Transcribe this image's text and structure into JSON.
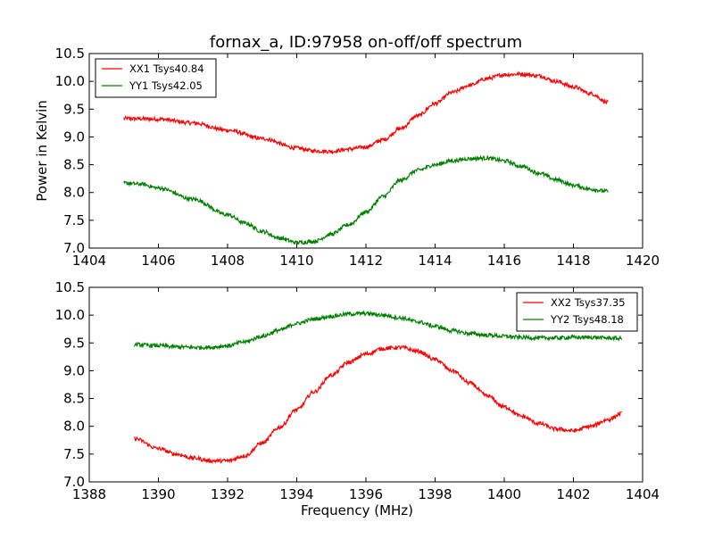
{
  "title": "fornax_a, ID:97958 on-off/off spectrum",
  "chart_data": [
    {
      "type": "line",
      "ylabel": "Power in Kelvin",
      "xlabel": "",
      "xlim": [
        1404,
        1420
      ],
      "ylim": [
        7.0,
        10.5
      ],
      "xticks": [
        "1404",
        "1406",
        "1408",
        "1410",
        "1412",
        "1414",
        "1416",
        "1418",
        "1420"
      ],
      "yticks": [
        "7.0",
        "7.5",
        "8.0",
        "8.5",
        "9.0",
        "9.5",
        "10.0",
        "10.5"
      ],
      "legend_position": "top-left",
      "grid": false,
      "series": [
        {
          "name": "XX1 Tsys40.84",
          "color": "#ff0000",
          "x": [
            1405.0,
            1406.0,
            1407.0,
            1408.0,
            1409.0,
            1410.0,
            1410.5,
            1411.0,
            1411.5,
            1412.0,
            1412.5,
            1413.0,
            1413.5,
            1414.0,
            1414.5,
            1415.0,
            1415.5,
            1416.0,
            1416.5,
            1417.0,
            1417.5,
            1418.0,
            1418.5,
            1419.0
          ],
          "y": [
            9.33,
            9.32,
            9.25,
            9.12,
            8.97,
            8.8,
            8.75,
            8.74,
            8.78,
            8.82,
            8.95,
            9.15,
            9.38,
            9.6,
            9.8,
            9.93,
            10.05,
            10.12,
            10.13,
            10.1,
            10.0,
            9.9,
            9.78,
            9.62
          ]
        },
        {
          "name": "YY1 Tsys42.05",
          "color": "#008000",
          "x": [
            1405.0,
            1405.5,
            1406.0,
            1407.0,
            1408.0,
            1408.5,
            1409.0,
            1409.5,
            1410.0,
            1410.5,
            1411.0,
            1411.5,
            1412.0,
            1412.5,
            1413.0,
            1413.5,
            1414.0,
            1414.5,
            1415.0,
            1415.5,
            1416.0,
            1416.5,
            1417.0,
            1417.5,
            1418.0,
            1418.5,
            1419.0
          ],
          "y": [
            8.17,
            8.15,
            8.08,
            7.88,
            7.6,
            7.45,
            7.3,
            7.18,
            7.1,
            7.12,
            7.25,
            7.42,
            7.65,
            7.93,
            8.22,
            8.4,
            8.5,
            8.57,
            8.61,
            8.62,
            8.57,
            8.47,
            8.35,
            8.23,
            8.13,
            8.06,
            8.02
          ]
        }
      ]
    },
    {
      "type": "line",
      "ylabel": "",
      "xlabel": "Frequency (MHz)",
      "xlim": [
        1388,
        1404
      ],
      "ylim": [
        7.0,
        10.5
      ],
      "xticks": [
        "1388",
        "1390",
        "1392",
        "1394",
        "1396",
        "1398",
        "1400",
        "1402",
        "1404"
      ],
      "yticks": [
        "7.0",
        "7.5",
        "8.0",
        "8.5",
        "9.0",
        "9.5",
        "10.0",
        "10.5"
      ],
      "legend_position": "top-right",
      "grid": false,
      "series": [
        {
          "name": "XX2 Tsys37.35",
          "color": "#ff0000",
          "x": [
            1389.3,
            1390.0,
            1390.5,
            1391.0,
            1391.5,
            1392.0,
            1392.5,
            1393.0,
            1393.5,
            1394.0,
            1394.5,
            1395.0,
            1395.5,
            1396.0,
            1396.5,
            1397.0,
            1397.5,
            1398.0,
            1398.5,
            1399.0,
            1399.5,
            1400.0,
            1400.5,
            1401.0,
            1401.5,
            1402.0,
            1402.5,
            1403.0,
            1403.4
          ],
          "y": [
            7.78,
            7.6,
            7.5,
            7.43,
            7.38,
            7.38,
            7.47,
            7.7,
            7.98,
            8.3,
            8.62,
            8.92,
            9.15,
            9.3,
            9.4,
            9.42,
            9.35,
            9.2,
            9.0,
            8.78,
            8.55,
            8.35,
            8.18,
            8.05,
            7.95,
            7.92,
            8.0,
            8.12,
            8.23
          ]
        },
        {
          "name": "YY2 Tsys48.18",
          "color": "#008000",
          "x": [
            1389.3,
            1390.0,
            1390.5,
            1391.0,
            1391.5,
            1392.0,
            1392.5,
            1393.0,
            1393.5,
            1394.0,
            1394.5,
            1395.0,
            1395.5,
            1396.0,
            1396.5,
            1397.0,
            1397.5,
            1398.0,
            1398.5,
            1399.0,
            1399.5,
            1400.0,
            1400.5,
            1401.0,
            1401.5,
            1402.0,
            1402.5,
            1403.0,
            1403.4
          ],
          "y": [
            9.47,
            9.45,
            9.43,
            9.42,
            9.42,
            9.45,
            9.52,
            9.62,
            9.73,
            9.85,
            9.93,
            9.98,
            10.02,
            10.03,
            10.0,
            9.95,
            9.88,
            9.8,
            9.72,
            9.67,
            9.64,
            9.62,
            9.6,
            9.59,
            9.59,
            9.6,
            9.6,
            9.59,
            9.58
          ]
        }
      ]
    }
  ]
}
